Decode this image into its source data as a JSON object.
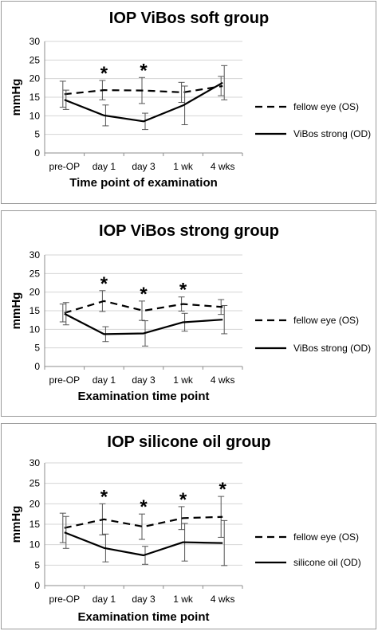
{
  "chart_data": [
    {
      "type": "line",
      "title": "IOP ViBos soft group",
      "xlabel": "Time point of examination",
      "ylabel": "mmHg",
      "ylim": [
        0,
        30
      ],
      "yticks": [
        "0",
        "5",
        "10",
        "15",
        "20",
        "25",
        "30"
      ],
      "grid": true,
      "legend_position": "right",
      "categories": [
        "pre-OP",
        "day 1",
        "day 3",
        "1 wk",
        "4 wks"
      ],
      "series": [
        {
          "name": "fellow eye (OS)",
          "style": "dashed",
          "values": [
            15.8,
            16.9,
            16.8,
            16.3,
            18.0
          ],
          "err": [
            3.5,
            2.6,
            3.5,
            2.7,
            2.6
          ]
        },
        {
          "name": "ViBos strong (OD)",
          "style": "solid",
          "values": [
            14.3,
            10.1,
            8.5,
            12.8,
            18.9
          ],
          "err": [
            2.6,
            2.8,
            2.2,
            5.2,
            4.6
          ]
        }
      ],
      "significance": [
        false,
        true,
        true,
        false,
        false
      ],
      "significance_marker": "*"
    },
    {
      "type": "line",
      "title": "IOP ViBos strong group",
      "xlabel": "Examination time point",
      "ylabel": "mmHg",
      "ylim": [
        0,
        30
      ],
      "yticks": [
        "0",
        "5",
        "10",
        "15",
        "20",
        "25",
        "30"
      ],
      "grid": true,
      "legend_position": "right",
      "categories": [
        "pre-OP",
        "day 1",
        "day 3",
        "1 wk",
        "4 wks"
      ],
      "series": [
        {
          "name": "fellow eye (OS)",
          "style": "dashed",
          "values": [
            14.4,
            17.6,
            15.0,
            16.8,
            16.0
          ],
          "err": [
            2.4,
            2.8,
            2.6,
            1.9,
            2.0
          ]
        },
        {
          "name": "ViBos strong (OD)",
          "style": "solid",
          "values": [
            14.2,
            8.7,
            8.9,
            11.9,
            12.6
          ],
          "err": [
            3.0,
            2.0,
            3.4,
            2.4,
            3.8
          ]
        }
      ],
      "significance": [
        false,
        true,
        true,
        true,
        false
      ],
      "significance_marker": "*"
    },
    {
      "type": "line",
      "title": "IOP silicone oil group",
      "xlabel": "Examination time point",
      "ylabel": "mmHg",
      "ylim": [
        0,
        30
      ],
      "yticks": [
        "0",
        "5",
        "10",
        "15",
        "20",
        "25",
        "30"
      ],
      "grid": true,
      "legend_position": "right",
      "categories": [
        "pre-OP",
        "day 1",
        "day 3",
        "1 wk",
        "4 wks"
      ],
      "series": [
        {
          "name": "fellow eye (OS)",
          "style": "dashed",
          "values": [
            14.1,
            16.2,
            14.4,
            16.5,
            16.8
          ],
          "err": [
            3.6,
            3.8,
            3.1,
            2.8,
            5.0
          ]
        },
        {
          "name": "silicone oil (OD)",
          "style": "solid",
          "values": [
            13.0,
            9.2,
            7.4,
            10.6,
            10.4
          ],
          "err": [
            3.9,
            3.4,
            2.2,
            4.6,
            5.5
          ]
        }
      ],
      "significance": [
        false,
        true,
        true,
        true,
        true
      ],
      "significance_marker": "*"
    }
  ]
}
